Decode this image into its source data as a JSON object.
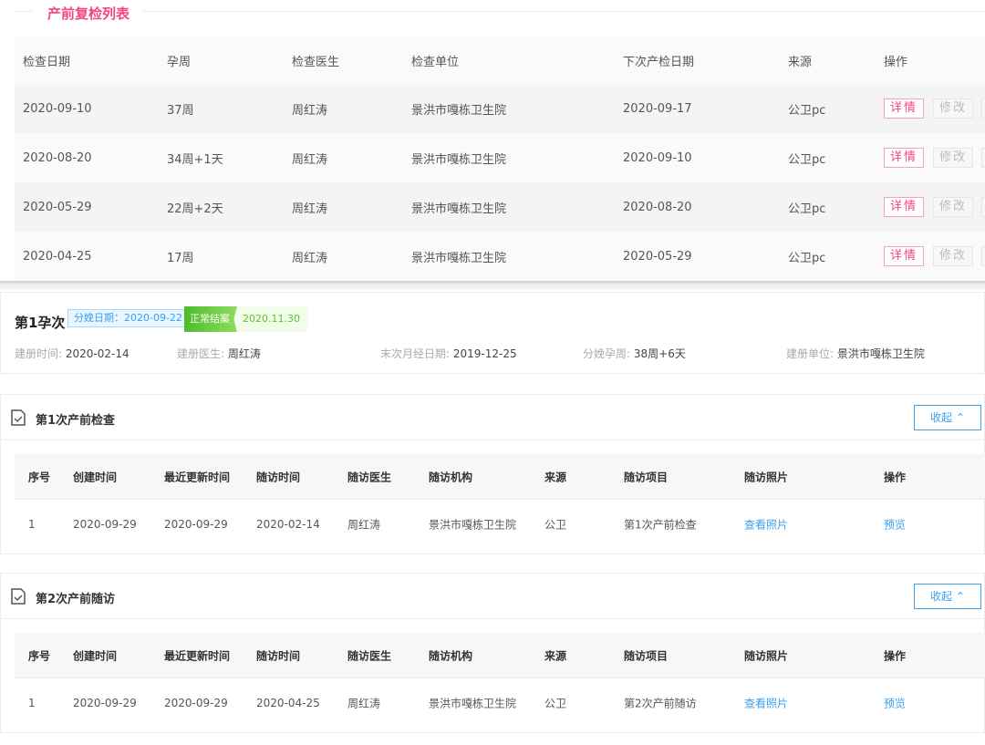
{
  "top": {
    "title": "产前复检列表",
    "headers": [
      "检查日期",
      "孕周",
      "检查医生",
      "检查单位",
      "下次产检日期",
      "来源",
      "操作"
    ],
    "detail_label": "详情",
    "edit_label": "修改",
    "rows": [
      [
        "2020-09-10",
        "37周",
        "周红涛",
        "景洪市嘎栋卫生院",
        "2020-09-17",
        "公卫pc"
      ],
      [
        "2020-08-20",
        "34周+1天",
        "周红涛",
        "景洪市嘎栋卫生院",
        "2020-09-10",
        "公卫pc"
      ],
      [
        "2020-05-29",
        "22周+2天",
        "周红涛",
        "景洪市嘎栋卫生院",
        "2020-08-20",
        "公卫pc"
      ],
      [
        "2020-04-25",
        "17周",
        "周红涛",
        "景洪市嘎栋卫生院",
        "2020-05-29",
        "公卫pc"
      ]
    ]
  },
  "pregnancy": {
    "name": "第1孕次",
    "delivery_tag": "分娩日期：2020-09-22",
    "status": "正常结案",
    "status_date": "2020.11.30",
    "meta": [
      {
        "label": "建册时间:",
        "value": "2020-02-14"
      },
      {
        "label": "建册医生:",
        "value": "周红涛"
      },
      {
        "label": "末次月经日期:",
        "value": "2019-12-25"
      },
      {
        "label": "分娩孕周:",
        "value": "38周+6天"
      },
      {
        "label": "建册单位:",
        "value": "景洪市嘎栋卫生院"
      }
    ]
  },
  "colors": {
    "accent_pink": "#f5457f",
    "accent_blue": "#3aa0f0",
    "status_green": "#59c42d"
  },
  "sections": [
    {
      "title": "第1次产前检查",
      "collapse_label": "收起",
      "headers": [
        "序号",
        "创建时间",
        "最近更新时间",
        "随访时间",
        "随访医生",
        "随访机构",
        "来源",
        "随访项目",
        "随访照片",
        "操作"
      ],
      "row": [
        "1",
        "2020-09-29",
        "2020-09-29",
        "2020-02-14",
        "周红涛",
        "景洪市嘎栋卫生院",
        "公卫",
        "第1次产前检查",
        "查看照片",
        "预览"
      ]
    },
    {
      "title": "第2次产前随访",
      "collapse_label": "收起",
      "headers": [
        "序号",
        "创建时间",
        "最近更新时间",
        "随访时间",
        "随访医生",
        "随访机构",
        "来源",
        "随访项目",
        "随访照片",
        "操作"
      ],
      "row": [
        "1",
        "2020-09-29",
        "2020-09-29",
        "2020-04-25",
        "周红涛",
        "景洪市嘎栋卫生院",
        "公卫",
        "第2次产前随访",
        "查看照片",
        "预览"
      ]
    }
  ]
}
